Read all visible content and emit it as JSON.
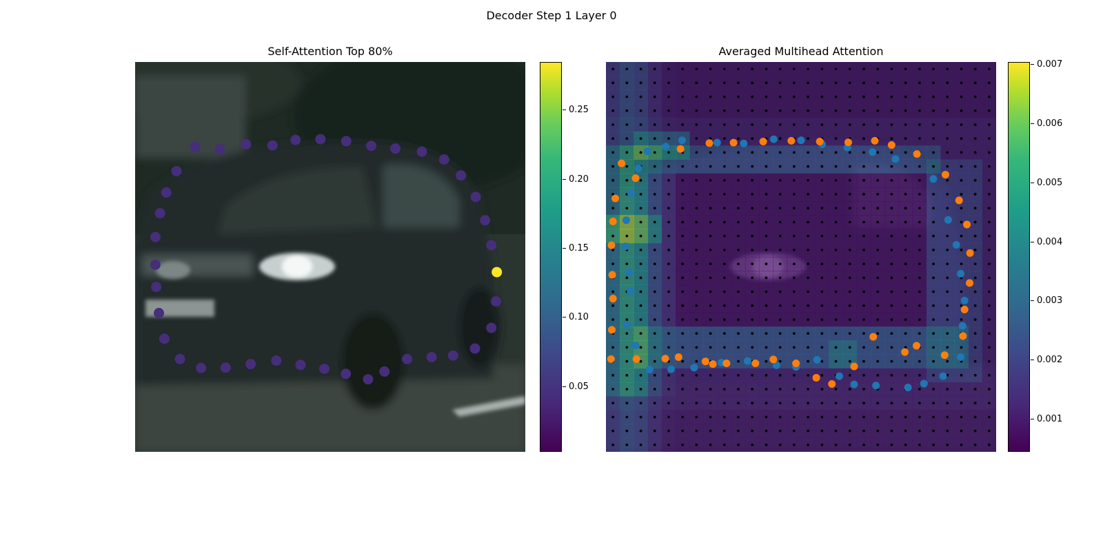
{
  "figure": {
    "suptitle": "Decoder Step 1 Layer 0"
  },
  "chart_data": [
    {
      "type": "scatter",
      "title": "Self-Attention Top 80%",
      "background": "blurred photo of a dark green car",
      "xlim": [
        0,
        1
      ],
      "ylim": [
        0,
        1
      ],
      "colormap": "viridis",
      "colorbar": {
        "range": [
          0.003,
          0.285
        ],
        "ticks": [
          "0.05",
          "0.10",
          "0.15",
          "0.20",
          "0.25"
        ],
        "tick_values": [
          0.05,
          0.1,
          0.15,
          0.2,
          0.25
        ]
      },
      "points": [
        [
          0.154,
          0.782,
          0.04
        ],
        [
          0.217,
          0.776,
          0.04
        ],
        [
          0.284,
          0.789,
          0.04
        ],
        [
          0.352,
          0.786,
          0.04
        ],
        [
          0.411,
          0.8,
          0.04
        ],
        [
          0.475,
          0.802,
          0.04
        ],
        [
          0.541,
          0.797,
          0.04
        ],
        [
          0.605,
          0.785,
          0.04
        ],
        [
          0.667,
          0.778,
          0.04
        ],
        [
          0.735,
          0.77,
          0.04
        ],
        [
          0.792,
          0.75,
          0.04
        ],
        [
          0.835,
          0.709,
          0.04
        ],
        [
          0.873,
          0.654,
          0.04
        ],
        [
          0.897,
          0.594,
          0.04
        ],
        [
          0.913,
          0.53,
          0.04
        ],
        [
          0.927,
          0.461,
          0.285
        ],
        [
          0.925,
          0.386,
          0.04
        ],
        [
          0.913,
          0.318,
          0.04
        ],
        [
          0.871,
          0.265,
          0.04
        ],
        [
          0.815,
          0.247,
          0.04
        ],
        [
          0.76,
          0.243,
          0.04
        ],
        [
          0.697,
          0.238,
          0.04
        ],
        [
          0.639,
          0.206,
          0.04
        ],
        [
          0.597,
          0.186,
          0.04
        ],
        [
          0.54,
          0.2,
          0.04
        ],
        [
          0.485,
          0.213,
          0.04
        ],
        [
          0.424,
          0.223,
          0.04
        ],
        [
          0.362,
          0.234,
          0.04
        ],
        [
          0.296,
          0.225,
          0.04
        ],
        [
          0.232,
          0.216,
          0.04
        ],
        [
          0.169,
          0.215,
          0.04
        ],
        [
          0.115,
          0.238,
          0.04
        ],
        [
          0.075,
          0.29,
          0.04
        ],
        [
          0.061,
          0.356,
          0.04
        ],
        [
          0.054,
          0.423,
          0.04
        ],
        [
          0.052,
          0.48,
          0.04
        ],
        [
          0.052,
          0.551,
          0.04
        ],
        [
          0.064,
          0.612,
          0.04
        ],
        [
          0.08,
          0.665,
          0.04
        ],
        [
          0.106,
          0.72,
          0.04
        ]
      ]
    },
    {
      "type": "heatmap",
      "title": "Averaged Multihead Attention",
      "background": "blurred photo of a dark green car under a 28x28 attention heatmap with reference-point grid",
      "grid": [
        28,
        28
      ],
      "colormap": "viridis",
      "colorbar": {
        "range": [
          0.00045,
          0.00705
        ],
        "ticks": [
          "0.001",
          "0.002",
          "0.003",
          "0.004",
          "0.005",
          "0.006",
          "0.007"
        ],
        "tick_values": [
          0.001,
          0.002,
          0.003,
          0.004,
          0.005,
          0.006,
          0.007
        ]
      },
      "series": [
        {
          "color": "#1f77b4",
          "points": [
            [
              0.153,
              0.783
            ],
            [
              0.195,
              0.799
            ],
            [
              0.285,
              0.793
            ],
            [
              0.353,
              0.791
            ],
            [
              0.43,
              0.802
            ],
            [
              0.5,
              0.799
            ],
            [
              0.554,
              0.789
            ],
            [
              0.619,
              0.781
            ],
            [
              0.683,
              0.769
            ],
            [
              0.742,
              0.751
            ],
            [
              0.839,
              0.7
            ],
            [
              0.877,
              0.595
            ],
            [
              0.898,
              0.531
            ],
            [
              0.909,
              0.457
            ],
            [
              0.919,
              0.388
            ],
            [
              0.914,
              0.323
            ],
            [
              0.909,
              0.243
            ],
            [
              0.864,
              0.194
            ],
            [
              0.815,
              0.175
            ],
            [
              0.774,
              0.165
            ],
            [
              0.692,
              0.17
            ],
            [
              0.636,
              0.173
            ],
            [
              0.598,
              0.194
            ],
            [
              0.541,
              0.236
            ],
            [
              0.487,
              0.218
            ],
            [
              0.437,
              0.222
            ],
            [
              0.363,
              0.233
            ],
            [
              0.296,
              0.229
            ],
            [
              0.226,
              0.216
            ],
            [
              0.167,
              0.212
            ],
            [
              0.112,
              0.211
            ],
            [
              0.076,
              0.273
            ],
            [
              0.054,
              0.326
            ],
            [
              0.063,
              0.412
            ],
            [
              0.059,
              0.46
            ],
            [
              0.05,
              0.527
            ],
            [
              0.052,
              0.594
            ],
            [
              0.064,
              0.664
            ],
            [
              0.083,
              0.727
            ],
            [
              0.106,
              0.771
            ]
          ]
        },
        {
          "color": "#ff7f0e",
          "points": [
            [
              0.191,
              0.777
            ],
            [
              0.265,
              0.792
            ],
            [
              0.327,
              0.793
            ],
            [
              0.403,
              0.796
            ],
            [
              0.475,
              0.798
            ],
            [
              0.548,
              0.796
            ],
            [
              0.621,
              0.794
            ],
            [
              0.689,
              0.798
            ],
            [
              0.732,
              0.787
            ],
            [
              0.797,
              0.764
            ],
            [
              0.87,
              0.711
            ],
            [
              0.905,
              0.645
            ],
            [
              0.925,
              0.583
            ],
            [
              0.933,
              0.51
            ],
            [
              0.932,
              0.433
            ],
            [
              0.919,
              0.365
            ],
            [
              0.915,
              0.297
            ],
            [
              0.868,
              0.248
            ],
            [
              0.796,
              0.272
            ],
            [
              0.766,
              0.256
            ],
            [
              0.685,
              0.295
            ],
            [
              0.636,
              0.219
            ],
            [
              0.579,
              0.174
            ],
            [
              0.539,
              0.19
            ],
            [
              0.487,
              0.227
            ],
            [
              0.429,
              0.237
            ],
            [
              0.383,
              0.227
            ],
            [
              0.309,
              0.227
            ],
            [
              0.274,
              0.225
            ],
            [
              0.255,
              0.232
            ],
            [
              0.152,
              0.239
            ],
            [
              0.186,
              0.243
            ],
            [
              0.078,
              0.238
            ],
            [
              0.013,
              0.238
            ],
            [
              0.015,
              0.313
            ],
            [
              0.018,
              0.393
            ],
            [
              0.016,
              0.454
            ],
            [
              0.014,
              0.53
            ],
            [
              0.018,
              0.591
            ],
            [
              0.024,
              0.65
            ],
            [
              0.04,
              0.74
            ],
            [
              0.076,
              0.702
            ]
          ]
        }
      ]
    }
  ]
}
